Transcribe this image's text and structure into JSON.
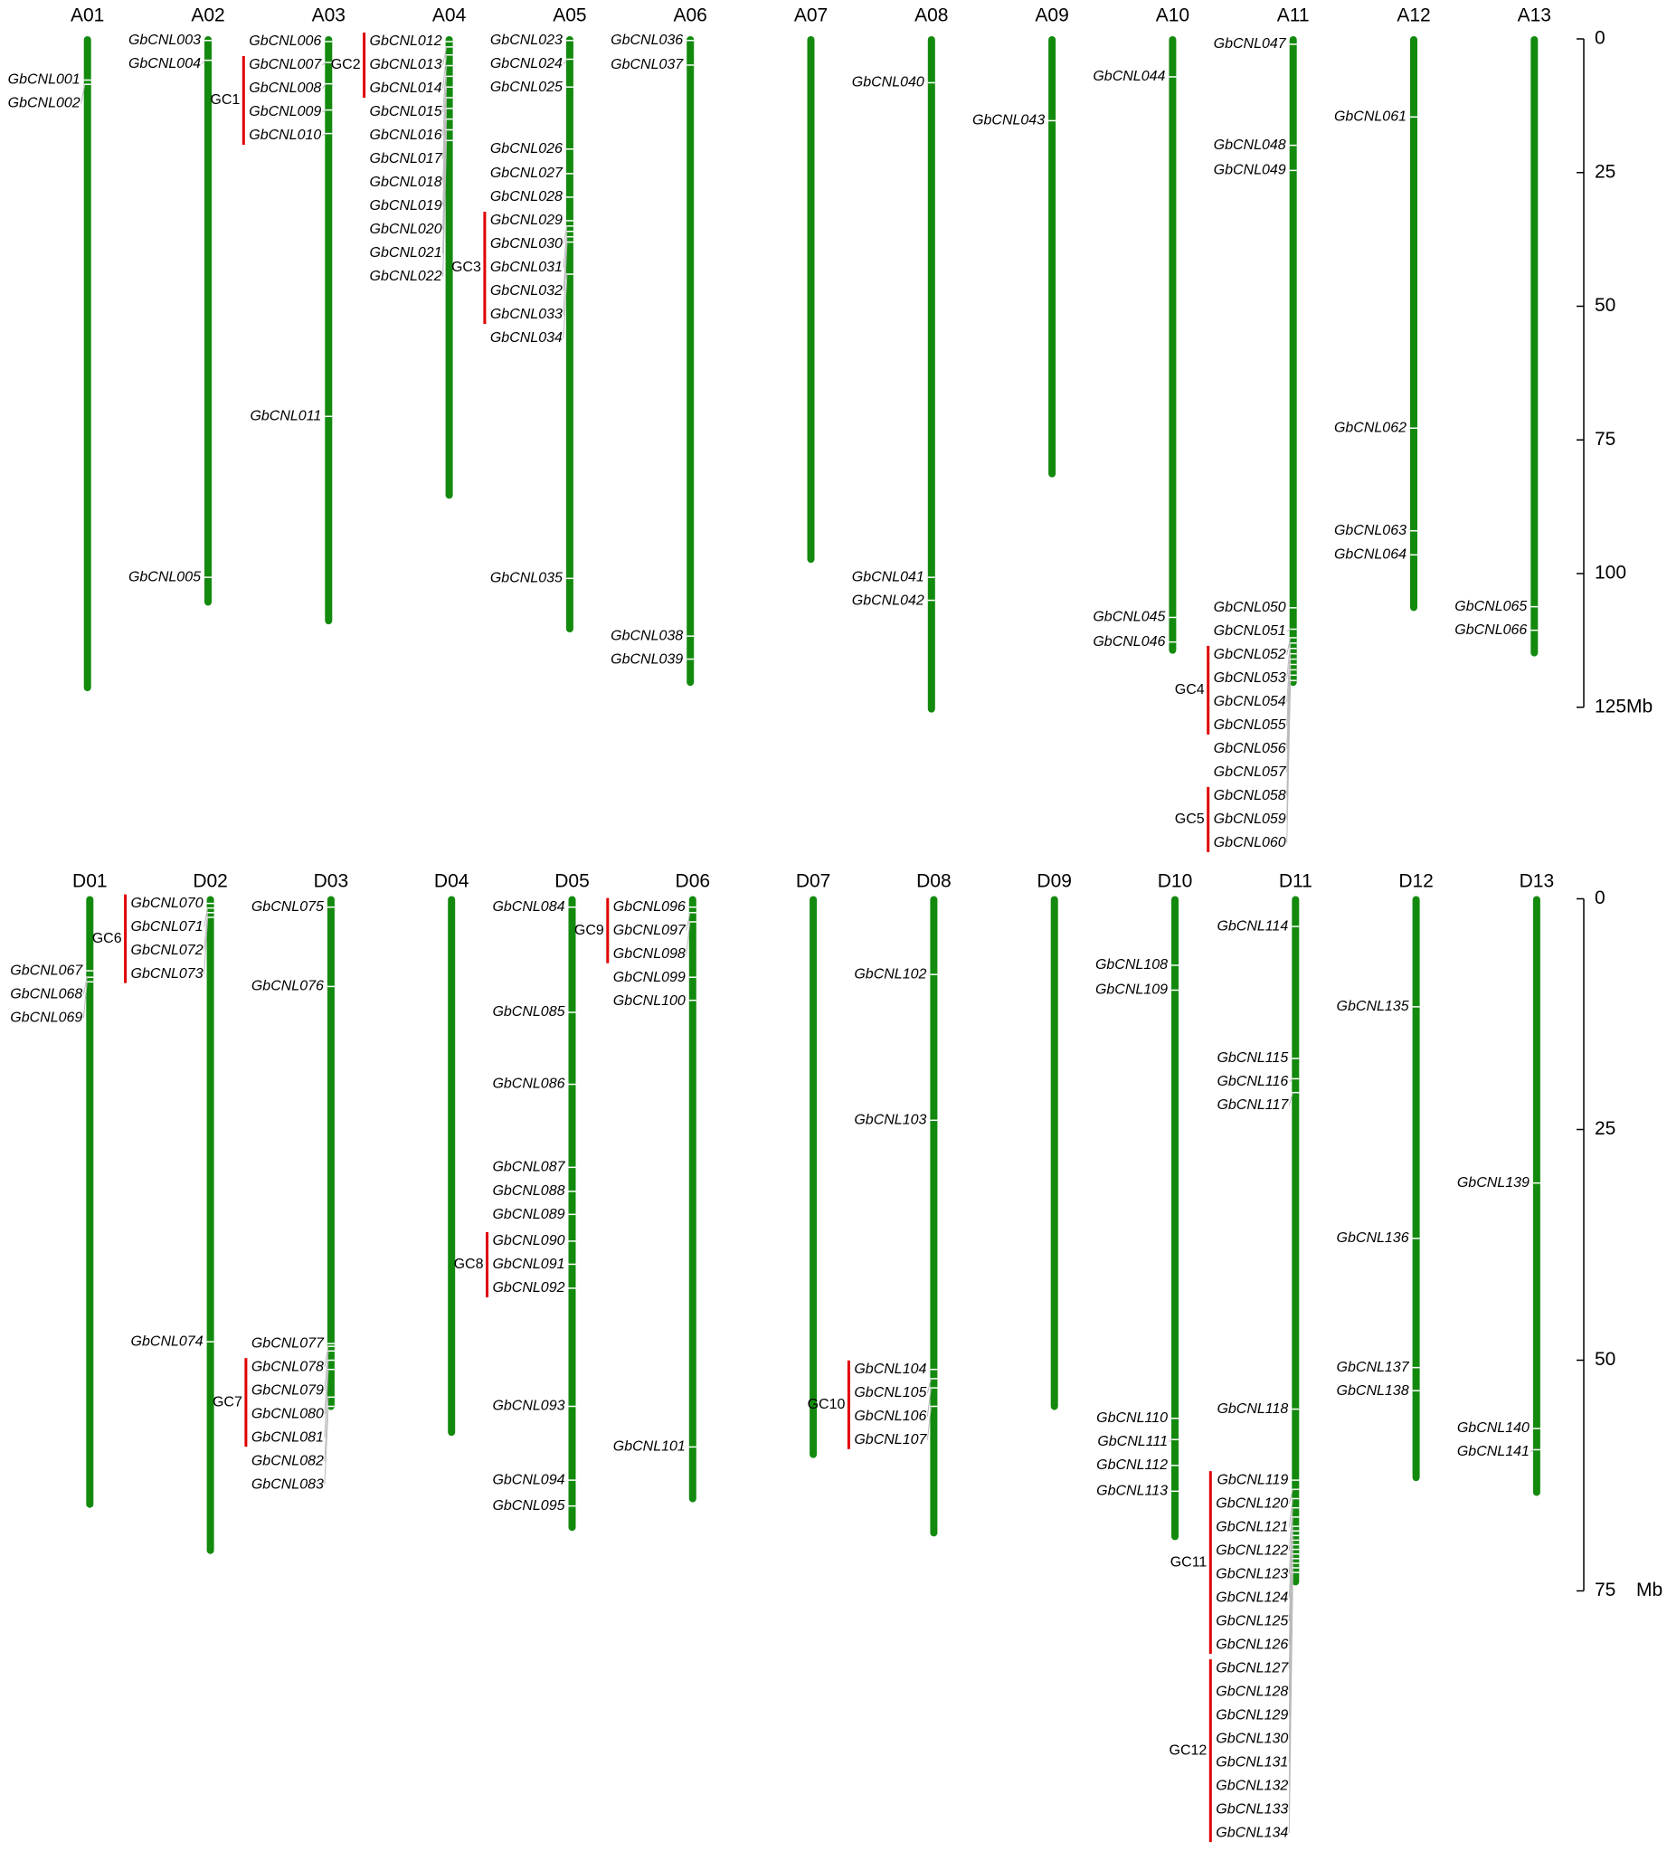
{
  "panels": [
    {
      "scale": {
        "ticks": [
          0,
          25,
          50,
          75,
          100,
          {
            "value": 125,
            "label": "125Mb"
          }
        ]
      },
      "chromosomes": [
        {
          "name": "A01",
          "length": 122,
          "loci": [
            {
              "label": "GbCNL001",
              "position": 7.7
            },
            {
              "label": "GbCNL002",
              "position": 8.5
            }
          ]
        },
        {
          "name": "A02",
          "length": 106,
          "loci": [
            {
              "label": "GbCNL003",
              "position": 0.3
            },
            {
              "label": "GbCNL004",
              "position": 4
            },
            {
              "label": "GbCNL005",
              "position": 100.7
            }
          ]
        },
        {
          "name": "A03",
          "length": 109.5,
          "loci": [
            {
              "label": "GbCNL006",
              "position": 0.5
            },
            {
              "cluster": "GC1",
              "genes": [
                {
                  "label": "GbCNL007",
                  "position": 4.4
                },
                {
                  "label": "GbCNL008",
                  "position": 8.4
                },
                {
                  "label": "GbCNL009",
                  "position": 13.3
                },
                {
                  "label": "GbCNL010",
                  "position": 17.7
                }
              ]
            },
            {
              "label": "GbCNL011",
              "position": 70.6
            }
          ]
        },
        {
          "name": "A04",
          "length": 86,
          "loci": [
            {
              "cluster": "GC2",
              "genes": [
                {
                  "label": "GbCNL012",
                  "position": 0.5
                },
                {
                  "label": "GbCNL013",
                  "position": 1.5
                },
                {
                  "label": "GbCNL014",
                  "position": 3
                }
              ]
            },
            {
              "label": "GbCNL015",
              "position": 5
            },
            {
              "label": "GbCNL016",
              "position": 7
            },
            {
              "label": "GbCNL017",
              "position": 9
            },
            {
              "label": "GbCNL018",
              "position": 11
            },
            {
              "label": "GbCNL019",
              "position": 13
            },
            {
              "label": "GbCNL020",
              "position": 15
            },
            {
              "label": "GbCNL021",
              "position": 17
            },
            {
              "label": "GbCNL022",
              "position": 19
            }
          ]
        },
        {
          "name": "A05",
          "length": 111,
          "loci": [
            {
              "label": "GbCNL023",
              "position": 0.3
            },
            {
              "label": "GbCNL024",
              "position": 3.8
            },
            {
              "label": "GbCNL025",
              "position": 9
            },
            {
              "label": "GbCNL026",
              "position": 20.6
            },
            {
              "label": "GbCNL027",
              "position": 25.2
            },
            {
              "label": "GbCNL028",
              "position": 29.6
            },
            {
              "cluster": "GC3",
              "genes": [
                {
                  "label": "GbCNL029",
                  "position": 34
                },
                {
                  "label": "GbCNL030",
                  "position": 35
                },
                {
                  "label": "GbCNL031",
                  "position": 36
                },
                {
                  "label": "GbCNL032",
                  "position": 37
                },
                {
                  "label": "GbCNL033",
                  "position": 38
                }
              ]
            },
            {
              "label": "GbCNL034",
              "position": 44
            },
            {
              "label": "GbCNL035",
              "position": 100.9
            }
          ]
        },
        {
          "name": "A06",
          "length": 121,
          "loci": [
            {
              "label": "GbCNL036",
              "position": 0.3
            },
            {
              "label": "GbCNL037",
              "position": 4.9
            },
            {
              "label": "GbCNL038",
              "position": 111.7
            },
            {
              "label": "GbCNL039",
              "position": 116
            }
          ]
        },
        {
          "name": "A07",
          "length": 98,
          "loci": []
        },
        {
          "name": "A08",
          "length": 126,
          "loci": [
            {
              "label": "GbCNL040",
              "position": 8.2
            },
            {
              "label": "GbCNL041",
              "position": 100.7
            },
            {
              "label": "GbCNL042",
              "position": 105
            }
          ]
        },
        {
          "name": "A09",
          "length": 82,
          "loci": [
            {
              "label": "GbCNL043",
              "position": 15.3
            }
          ]
        },
        {
          "name": "A10",
          "length": 115,
          "loci": [
            {
              "label": "GbCNL044",
              "position": 7.1
            },
            {
              "label": "GbCNL045",
              "position": 108.2
            },
            {
              "label": "GbCNL046",
              "position": 112.8
            }
          ]
        },
        {
          "name": "A11",
          "length": 121,
          "loci": [
            {
              "label": "GbCNL047",
              "position": 1
            },
            {
              "label": "GbCNL048",
              "position": 19.9
            },
            {
              "label": "GbCNL049",
              "position": 24.6
            },
            {
              "label": "GbCNL050",
              "position": 106.4
            },
            {
              "label": "GbCNL051",
              "position": 110.4
            },
            {
              "cluster": "GC4",
              "genes": [
                {
                  "label": "GbCNL052",
                  "position": 112
                },
                {
                  "label": "GbCNL053",
                  "position": 113
                },
                {
                  "label": "GbCNL054",
                  "position": 114
                },
                {
                  "label": "GbCNL055",
                  "position": 115
                }
              ]
            },
            {
              "label": "GbCNL056",
              "position": 116
            },
            {
              "label": "GbCNL057",
              "position": 117
            },
            {
              "cluster": "GC5",
              "genes": [
                {
                  "label": "GbCNL058",
                  "position": 118
                },
                {
                  "label": "GbCNL059",
                  "position": 119
                },
                {
                  "label": "GbCNL060",
                  "position": 120
                }
              ]
            }
          ]
        },
        {
          "name": "A12",
          "length": 107,
          "loci": [
            {
              "label": "GbCNL061",
              "position": 14.6
            },
            {
              "label": "GbCNL062",
              "position": 72.8
            },
            {
              "label": "GbCNL063",
              "position": 92
            },
            {
              "label": "GbCNL064",
              "position": 96.5
            }
          ]
        },
        {
          "name": "A13",
          "length": 115.5,
          "loci": [
            {
              "label": "GbCNL065",
              "position": 106.2
            },
            {
              "label": "GbCNL066",
              "position": 110.6
            }
          ]
        }
      ]
    },
    {
      "scale": {
        "ticks": [
          0,
          25,
          50,
          75
        ],
        "unit": "Mb"
      },
      "chromosomes": [
        {
          "name": "D01",
          "length": 66,
          "loci": [
            {
              "label": "GbCNL067",
              "position": 7.8
            },
            {
              "label": "GbCNL068",
              "position": 8.5
            },
            {
              "label": "GbCNL069",
              "position": 9
            }
          ]
        },
        {
          "name": "D02",
          "length": 71,
          "loci": [
            {
              "cluster": "GC6",
              "genes": [
                {
                  "label": "GbCNL070",
                  "position": 0.5
                },
                {
                  "label": "GbCNL071",
                  "position": 1
                },
                {
                  "label": "GbCNL072",
                  "position": 1.5
                },
                {
                  "label": "GbCNL073",
                  "position": 2
                }
              ]
            },
            {
              "label": "GbCNL074",
              "position": 48
            }
          ]
        },
        {
          "name": "D03",
          "length": 55.4,
          "loci": [
            {
              "label": "GbCNL075",
              "position": 0.9
            },
            {
              "label": "GbCNL076",
              "position": 9.5
            },
            {
              "label": "GbCNL077",
              "position": 48.2
            },
            {
              "cluster": "GC7",
              "genes": [
                {
                  "label": "GbCNL078",
                  "position": 48.5
                },
                {
                  "label": "GbCNL079",
                  "position": 49
                },
                {
                  "label": "GbCNL080",
                  "position": 50
                },
                {
                  "label": "GbCNL081",
                  "position": 51
                }
              ]
            },
            {
              "label": "GbCNL082",
              "position": 54
            },
            {
              "label": "GbCNL083",
              "position": 55
            }
          ]
        },
        {
          "name": "D04",
          "length": 58.2,
          "loci": []
        },
        {
          "name": "D05",
          "length": 68.5,
          "loci": [
            {
              "label": "GbCNL084",
              "position": 0.9
            },
            {
              "label": "GbCNL085",
              "position": 12.3
            },
            {
              "label": "GbCNL086",
              "position": 20.1
            },
            {
              "label": "GbCNL087",
              "position": 29.1
            },
            {
              "label": "GbCNL088",
              "position": 31.7
            },
            {
              "label": "GbCNL089",
              "position": 34.2
            },
            {
              "cluster": "GC8",
              "genes": [
                {
                  "label": "GbCNL090",
                  "position": 37.1
                },
                {
                  "label": "GbCNL091",
                  "position": 39.6
                },
                {
                  "label": "GbCNL092",
                  "position": 42.2
                }
              ]
            },
            {
              "label": "GbCNL093",
              "position": 55
            },
            {
              "label": "GbCNL094",
              "position": 63
            },
            {
              "label": "GbCNL095",
              "position": 65.8
            }
          ]
        },
        {
          "name": "D06",
          "length": 65.4,
          "loci": [
            {
              "cluster": "GC9",
              "genes": [
                {
                  "label": "GbCNL096",
                  "position": 0.9
                },
                {
                  "label": "GbCNL097",
                  "position": 1.5
                },
                {
                  "label": "GbCNL098",
                  "position": 2.5
                }
              ]
            },
            {
              "label": "GbCNL099",
              "position": 8.5
            },
            {
              "label": "GbCNL100",
              "position": 11
            },
            {
              "label": "GbCNL101",
              "position": 59.4
            }
          ]
        },
        {
          "name": "D07",
          "length": 60.6,
          "loci": []
        },
        {
          "name": "D08",
          "length": 69.1,
          "loci": [
            {
              "label": "GbCNL102",
              "position": 8.2
            },
            {
              "label": "GbCNL103",
              "position": 24
            },
            {
              "cluster": "GC10",
              "genes": [
                {
                  "label": "GbCNL104",
                  "position": 51
                },
                {
                  "label": "GbCNL105",
                  "position": 52
                },
                {
                  "label": "GbCNL106",
                  "position": 53
                },
                {
                  "label": "GbCNL107",
                  "position": 55
                }
              ]
            }
          ]
        },
        {
          "name": "D09",
          "length": 55.4,
          "loci": []
        },
        {
          "name": "D10",
          "length": 69.5,
          "loci": [
            {
              "label": "GbCNL108",
              "position": 7.2
            },
            {
              "label": "GbCNL109",
              "position": 9.9
            },
            {
              "label": "GbCNL110",
              "position": 56.3
            },
            {
              "label": "GbCNL111",
              "position": 58.6
            },
            {
              "label": "GbCNL112",
              "position": 61.4
            },
            {
              "label": "GbCNL113",
              "position": 64.2
            }
          ]
        },
        {
          "name": "D11",
          "length": 74.4,
          "loci": [
            {
              "label": "GbCNL114",
              "position": 3
            },
            {
              "label": "GbCNL115",
              "position": 17.3
            },
            {
              "label": "GbCNL116",
              "position": 19.5
            },
            {
              "label": "GbCNL117",
              "position": 21
            },
            {
              "label": "GbCNL118",
              "position": 55.3
            },
            {
              "cluster": "GC11",
              "genes": [
                {
                  "label": "GbCNL119",
                  "position": 63
                },
                {
                  "label": "GbCNL120",
                  "position": 64
                },
                {
                  "label": "GbCNL121",
                  "position": 65
                },
                {
                  "label": "GbCNL122",
                  "position": 66
                },
                {
                  "label": "GbCNL123",
                  "position": 67
                },
                {
                  "label": "GbCNL124",
                  "position": 68
                },
                {
                  "label": "GbCNL125",
                  "position": 68.5
                },
                {
                  "label": "GbCNL126",
                  "position": 69
                }
              ]
            },
            {
              "cluster": "GC12",
              "genes": [
                {
                  "label": "GbCNL127",
                  "position": 69.5
                },
                {
                  "label": "GbCNL128",
                  "position": 70
                },
                {
                  "label": "GbCNL129",
                  "position": 70.5
                },
                {
                  "label": "GbCNL130",
                  "position": 71
                },
                {
                  "label": "GbCNL131",
                  "position": 71.5
                },
                {
                  "label": "GbCNL132",
                  "position": 72
                },
                {
                  "label": "GbCNL133",
                  "position": 72.5
                },
                {
                  "label": "GbCNL134",
                  "position": 73
                }
              ]
            }
          ]
        },
        {
          "name": "D12",
          "length": 63.1,
          "loci": [
            {
              "label": "GbCNL135",
              "position": 11.7
            },
            {
              "label": "GbCNL136",
              "position": 36.8
            },
            {
              "label": "GbCNL137",
              "position": 50.8
            },
            {
              "label": "GbCNL138",
              "position": 53.3
            }
          ]
        },
        {
          "name": "D13",
          "length": 64.7,
          "loci": [
            {
              "label": "GbCNL139",
              "position": 30.8
            },
            {
              "label": "GbCNL140",
              "position": 57.4
            },
            {
              "label": "GbCNL141",
              "position": 59.7
            }
          ]
        }
      ]
    }
  ]
}
